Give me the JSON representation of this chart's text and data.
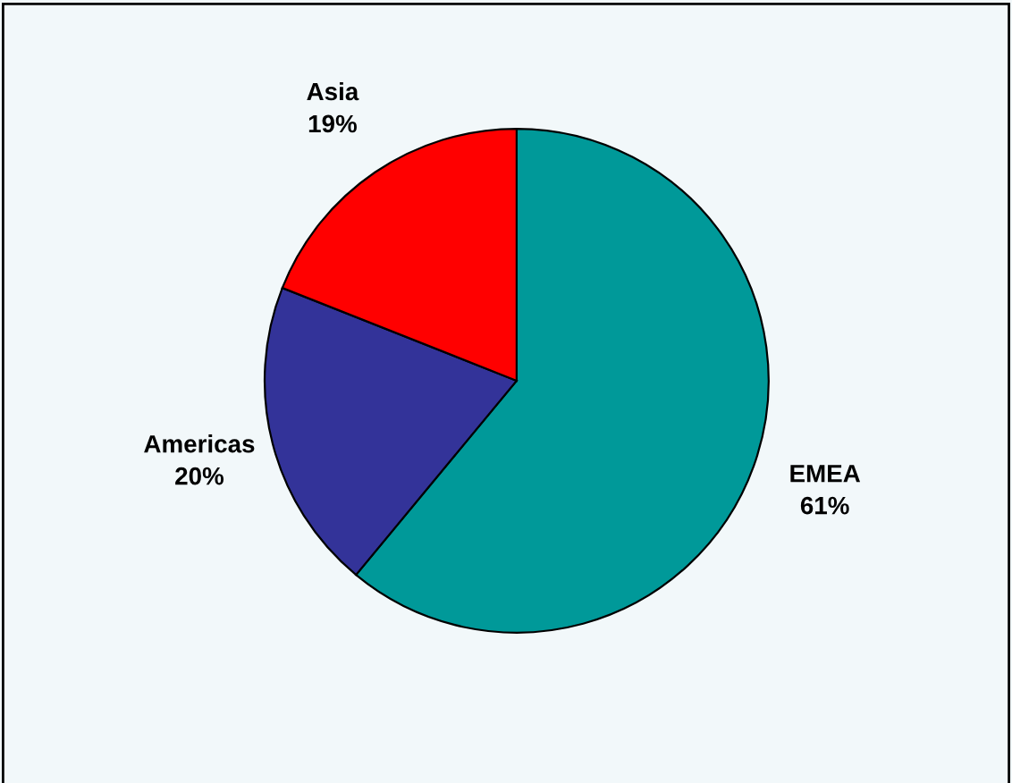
{
  "chart_data": {
    "type": "pie",
    "categories": [
      "EMEA",
      "Americas",
      "Asia"
    ],
    "values": [
      61,
      20,
      19
    ],
    "value_labels": [
      "61%",
      "20%",
      "19%"
    ],
    "colors": [
      "#009999",
      "#333399",
      "#ff0000"
    ]
  }
}
